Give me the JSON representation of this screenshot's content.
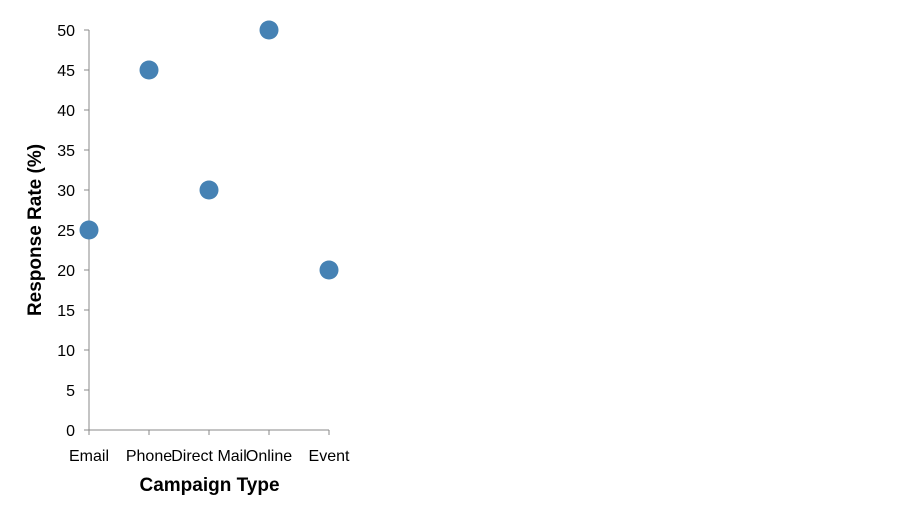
{
  "chart_data": {
    "type": "scatter",
    "categories": [
      "Email",
      "Phone",
      "Direct Mail",
      "Online",
      "Event"
    ],
    "values": [
      25,
      45,
      30,
      50,
      20
    ],
    "xlabel": "Campaign Type",
    "ylabel": "Response Rate (%)",
    "ylim": [
      0,
      50
    ],
    "yticks": [
      0,
      5,
      10,
      15,
      20,
      25,
      30,
      35,
      40,
      45,
      50
    ],
    "grid": false,
    "point_color": "#4682b4",
    "axis_color": "#888888"
  }
}
